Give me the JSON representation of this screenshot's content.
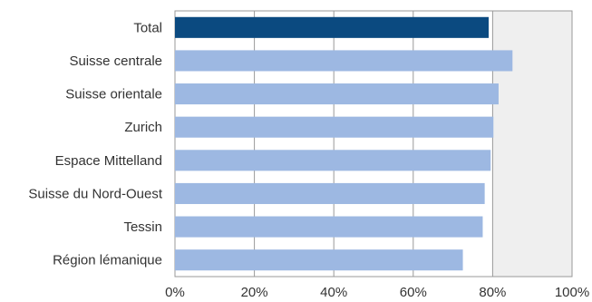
{
  "chart_data": {
    "type": "bar",
    "orientation": "horizontal",
    "title": "",
    "xlabel": "",
    "ylabel": "",
    "categories": [
      "Total",
      "Suisse centrale",
      "Suisse orientale",
      "Zurich",
      "Espace Mittelland",
      "Suisse du Nord-Ouest",
      "Tessin",
      "Région lémanique"
    ],
    "values": [
      79,
      85,
      81.5,
      80.2,
      79.5,
      78,
      77.5,
      72.5
    ],
    "highlight_index": 0,
    "xlim": [
      0,
      100
    ],
    "x_ticks": [
      0,
      20,
      40,
      60,
      80,
      100
    ],
    "x_tick_labels": [
      "0%",
      "20%",
      "40%",
      "60%",
      "80%",
      "100%"
    ],
    "grid": true,
    "legend": "none",
    "colors": {
      "highlight_bar": "#0b4a80",
      "bar": "#9db8e2",
      "shade": "#efefef",
      "grid": "#999999",
      "axis": "#999999"
    },
    "shaded_from_value": 80
  }
}
